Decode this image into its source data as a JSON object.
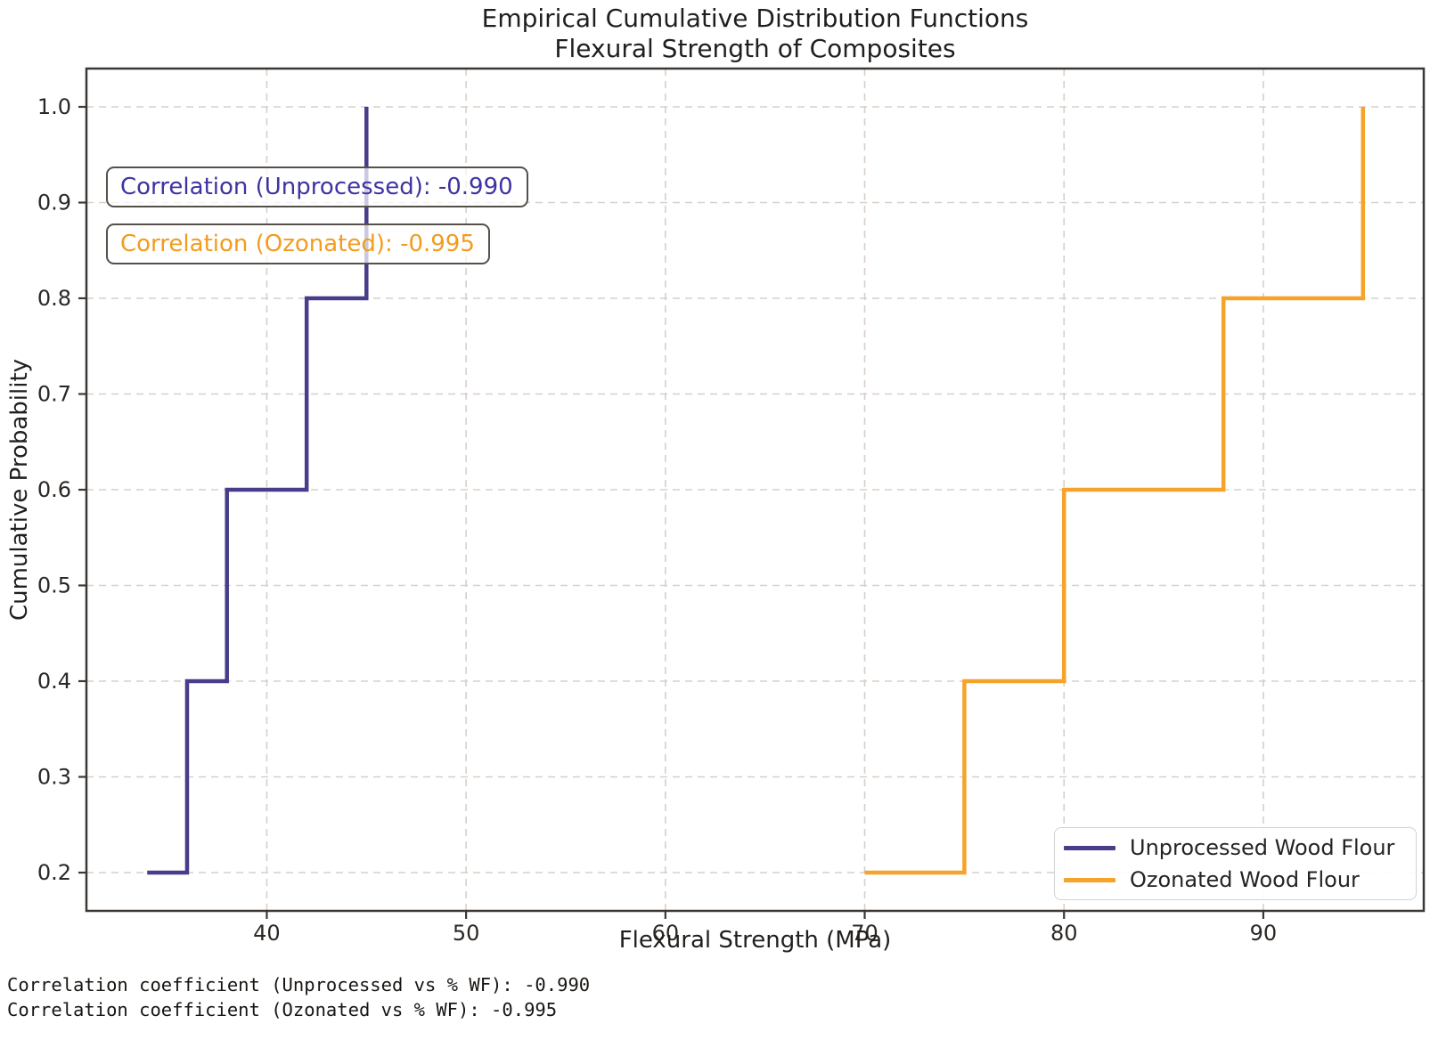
{
  "chart_data": {
    "type": "line",
    "subtype": "ecdf-step",
    "title": "Empirical Cumulative Distribution Functions",
    "subtitle": "Flexural Strength of Composites",
    "xlabel": "Flexural Strength (MPa)",
    "ylabel": "Cumulative Probability",
    "xlim": [
      30.95,
      98.05
    ],
    "ylim": [
      0.16,
      1.04
    ],
    "x_ticks": [
      40,
      50,
      60,
      70,
      80,
      90
    ],
    "y_ticks": [
      0.2,
      0.3,
      0.4,
      0.5,
      0.6,
      0.7,
      0.8,
      0.9,
      1.0
    ],
    "grid": true,
    "grid_style": "dashed",
    "legend_position": "lower right",
    "series": [
      {
        "name": "Unprocessed Wood Flour",
        "color": "#473d8b",
        "step": "post",
        "x": [
          34,
          36,
          38,
          42,
          45
        ],
        "y": [
          0.2,
          0.4,
          0.6,
          0.8,
          1.0
        ]
      },
      {
        "name": "Ozonated Wood Flour",
        "color": "#f5a32a",
        "step": "post",
        "x": [
          70,
          75,
          80,
          88,
          95
        ],
        "y": [
          0.2,
          0.4,
          0.6,
          0.8,
          1.0
        ]
      }
    ],
    "annotations": [
      {
        "text": "Correlation (Unprocessed): -0.990",
        "color": "#3e33a2"
      },
      {
        "text": "Correlation (Ozonated): -0.995",
        "color": "#f29c1e"
      }
    ]
  },
  "console": {
    "line1": "Correlation coefficient (Unprocessed vs % WF): -0.990",
    "line2": "Correlation coefficient (Ozonated vs % WF): -0.995"
  },
  "colors": {
    "spine": "#3c3733",
    "gridline": "#d8cfc9",
    "tick_label": "#2b2724"
  }
}
